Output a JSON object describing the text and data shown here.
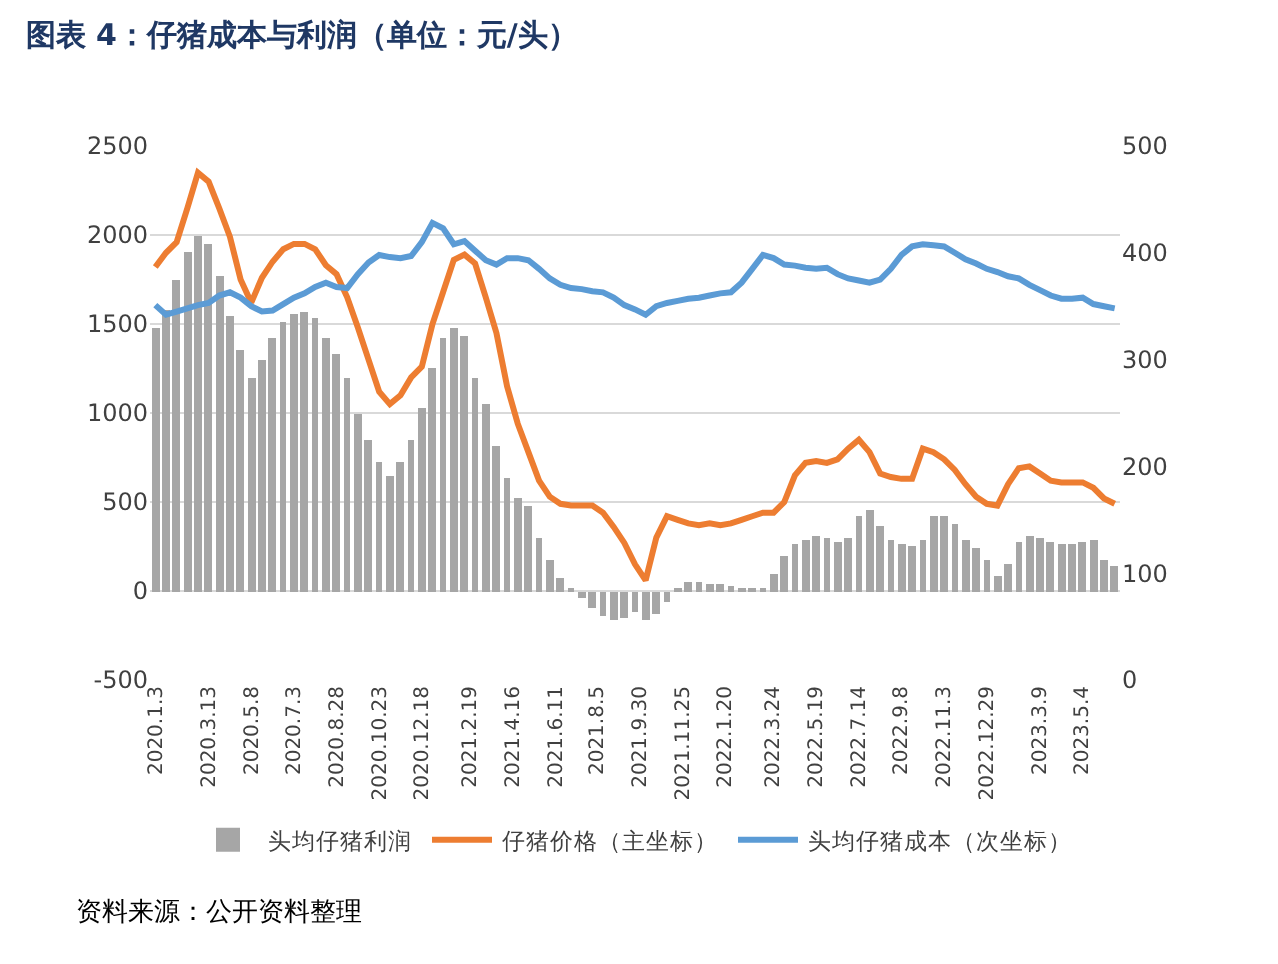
{
  "chart_data": {
    "type": "bar",
    "title": "图表 4：仔猪成本与利润（单位：元/头）",
    "x": [
      "2020-01-03",
      "2020-01-17",
      "2020-01-31",
      "2020-02-14",
      "2020-02-28",
      "2020-03-13",
      "2020-03-27",
      "2020-04-10",
      "2020-04-24",
      "2020-05-08",
      "2020-05-22",
      "2020-06-05",
      "2020-06-19",
      "2020-07-03",
      "2020-07-17",
      "2020-07-31",
      "2020-08-14",
      "2020-08-28",
      "2020-09-11",
      "2020-09-25",
      "2020-10-09",
      "2020-10-23",
      "2020-11-06",
      "2020-11-20",
      "2020-12-04",
      "2020-12-18",
      "2021-01-01",
      "2021-01-15",
      "2021-01-29",
      "2021-02-12",
      "2021-02-26",
      "2021-03-12",
      "2021-03-26",
      "2021-04-09",
      "2021-04-23",
      "2021-05-07",
      "2021-05-21",
      "2021-06-04",
      "2021-06-18",
      "2021-07-02",
      "2021-07-16",
      "2021-07-30",
      "2021-08-13",
      "2021-08-27",
      "2021-09-10",
      "2021-09-24",
      "2021-10-08",
      "2021-10-22",
      "2021-11-05",
      "2021-11-19",
      "2021-12-03",
      "2021-12-17",
      "2021-12-31",
      "2022-01-14",
      "2022-01-28",
      "2022-02-11",
      "2022-02-25",
      "2022-03-11",
      "2022-03-25",
      "2022-04-08",
      "2022-04-22",
      "2022-05-06",
      "2022-05-20",
      "2022-06-03",
      "2022-06-17",
      "2022-07-01",
      "2022-07-15",
      "2022-07-29",
      "2022-08-12",
      "2022-08-26",
      "2022-09-09",
      "2022-09-23",
      "2022-10-07",
      "2022-10-21",
      "2022-11-04",
      "2022-11-18",
      "2022-12-02",
      "2022-12-16",
      "2022-12-30",
      "2023-01-13",
      "2023-01-27",
      "2023-02-10",
      "2023-02-24",
      "2023-03-10",
      "2023-03-24",
      "2023-04-07",
      "2023-04-21",
      "2023-05-05",
      "2023-05-19",
      "2023-06-02",
      "2023-06-16"
    ],
    "series": [
      {
        "name": "头均仔猪利润",
        "color": "#a6a6a6",
        "values": [
          1480,
          1580,
          1750,
          1900,
          2000,
          1950,
          1770,
          1550,
          1350,
          1200,
          1300,
          1420,
          1510,
          1560,
          1570,
          1530,
          1420,
          1330,
          1200,
          1000,
          850,
          720,
          650,
          720,
          850,
          1030,
          1250,
          1420,
          1480,
          1430,
          1200,
          1050,
          820,
          640,
          520,
          480,
          300,
          170,
          70,
          20,
          -40,
          -90,
          -140,
          -160,
          -150,
          -120,
          -160,
          -130,
          -60,
          20,
          50,
          50,
          40,
          40,
          30,
          20,
          10,
          10,
          90,
          200,
          260,
          290,
          310,
          300,
          270,
          300,
          420,
          460,
          360,
          290,
          260,
          250,
          290,
          420,
          420,
          380,
          290,
          240,
          170,
          80,
          150,
          270,
          310,
          300,
          270,
          260,
          260,
          280,
          290,
          170,
          140
        ]
      },
      {
        "name": "仔猪价格（主坐标）",
        "type": "line",
        "color": "#ed7d31",
        "values": [
          1820,
          1900,
          1960,
          2150,
          2350,
          2300,
          2150,
          1990,
          1750,
          1620,
          1760,
          1850,
          1920,
          1950,
          1950,
          1920,
          1830,
          1780,
          1650,
          1480,
          1300,
          1120,
          1050,
          1100,
          1200,
          1260,
          1500,
          1680,
          1860,
          1890,
          1840,
          1650,
          1450,
          1150,
          940,
          780,
          620,
          530,
          490,
          480,
          480,
          480,
          440,
          360,
          270,
          150,
          60,
          300,
          420,
          400,
          380,
          370,
          380,
          370,
          380,
          400,
          420,
          440,
          440,
          500,
          650,
          720,
          730,
          720,
          740,
          800,
          850,
          780,
          660,
          640,
          630,
          630,
          800,
          780,
          740,
          680,
          600,
          530,
          490,
          480,
          600,
          690,
          700,
          660,
          620,
          610,
          610,
          610,
          580,
          520,
          490
        ]
      },
      {
        "name": "头均仔猪成本（次坐标）",
        "type": "line",
        "axis": "y2",
        "color": "#5b9bd5",
        "values": [
          351,
          342,
          345,
          348,
          351,
          353,
          360,
          363,
          358,
          350,
          345,
          346,
          352,
          358,
          362,
          368,
          372,
          368,
          367,
          380,
          391,
          398,
          396,
          395,
          397,
          410,
          428,
          423,
          408,
          411,
          402,
          393,
          389,
          395,
          395,
          393,
          385,
          376,
          370,
          367,
          366,
          364,
          363,
          358,
          351,
          347,
          342,
          350,
          353,
          355,
          357,
          358,
          360,
          362,
          363,
          372,
          385,
          398,
          395,
          389,
          388,
          386,
          385,
          386,
          380,
          376,
          374,
          372,
          375,
          385,
          398,
          406,
          408,
          407,
          406,
          400,
          394,
          390,
          385,
          382,
          378,
          376,
          370,
          365,
          360,
          357,
          357,
          358,
          352,
          350,
          348
        ]
      }
    ],
    "xlim": [
      "2019-12-27",
      "2023-06-23"
    ],
    "xticks": [
      {
        "value": "2020-01-03",
        "label": "2020.1.3"
      },
      {
        "value": "2020-03-13",
        "label": "2020.3.13"
      },
      {
        "value": "2020-05-08",
        "label": "2020.5.8"
      },
      {
        "value": "2020-07-03",
        "label": "2020.7.3"
      },
      {
        "value": "2020-08-28",
        "label": "2020.8.28"
      },
      {
        "value": "2020-10-23",
        "label": "2020.10.23"
      },
      {
        "value": "2020-12-18",
        "label": "2020.12.18"
      },
      {
        "value": "2021-02-19",
        "label": "2021.2.19"
      },
      {
        "value": "2021-04-16",
        "label": "2021.4.16"
      },
      {
        "value": "2021-06-11",
        "label": "2021.6.11"
      },
      {
        "value": "2021-08-05",
        "label": "2021.8.5"
      },
      {
        "value": "2021-09-30",
        "label": "2021.9.30"
      },
      {
        "value": "2021-11-25",
        "label": "2021.11.25"
      },
      {
        "value": "2022-01-20",
        "label": "2022.1.20"
      },
      {
        "value": "2022-03-24",
        "label": "2022.3.24"
      },
      {
        "value": "2022-05-19",
        "label": "2022.5.19"
      },
      {
        "value": "2022-07-14",
        "label": "2022.7.14"
      },
      {
        "value": "2022-09-08",
        "label": "2022.9.8"
      },
      {
        "value": "2022-11-03",
        "label": "2022.11.3"
      },
      {
        "value": "2022-12-29",
        "label": "2022.12.29"
      },
      {
        "value": "2023-03-09",
        "label": "2023.3.9"
      },
      {
        "value": "2023-05-04",
        "label": "2023.5.4"
      }
    ],
    "ylim": [
      -500,
      2500
    ],
    "yticks": [
      -500,
      0,
      500,
      1000,
      1500,
      2000,
      2500
    ],
    "y2lim": [
      0,
      500
    ],
    "y2ticks": [
      0,
      100,
      200,
      300,
      400,
      500
    ],
    "grid": "y",
    "legend": "bottom",
    "marker": "none",
    "line_style": "solid",
    "annotations": [
      "资料来源：公开资料整理"
    ]
  }
}
